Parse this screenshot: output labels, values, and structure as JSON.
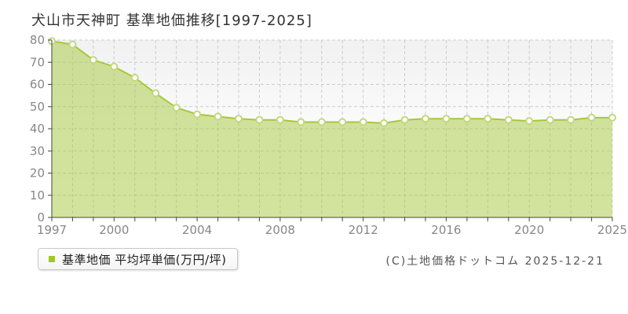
{
  "title": "犬山市天神町 基準地価推移[1997-2025]",
  "legend": {
    "label": "基準地価 平均坪単価(万円/坪)"
  },
  "copyright": "(C)土地価格ドットコム 2025-12-21",
  "colors": {
    "line": "#a6c83c",
    "fill": "rgba(166,200,60,0.5)",
    "marker_ring": "#c3d87e",
    "marker_fill": "#ffffff",
    "legend_square": "#a2c629",
    "grid": "#cccccc",
    "axis": "#444444",
    "tick_text": "#878787",
    "title_text": "#333333",
    "plot_bg_top": "#f1f1f1",
    "plot_bg_bottom": "#ffffff"
  },
  "chart_data": {
    "type": "area",
    "title": "犬山市天神町 基準地価推移[1997-2025]",
    "series_name": "基準地価 平均坪単価(万円/坪)",
    "xlabel": "",
    "ylabel": "平均坪単価(万円/坪)",
    "ylim": [
      0,
      80
    ],
    "grid": "dashed",
    "legend_position": "bottom-left",
    "years": [
      "1997",
      "1998",
      "1999",
      "2000",
      "2001",
      "2002",
      "2003",
      "2004",
      "2005",
      "2006",
      "2007",
      "2008",
      "2009",
      "2010",
      "2011",
      "2012",
      "2013",
      "2014",
      "2015",
      "2016",
      "2017",
      "2018",
      "2019",
      "2020",
      "2021",
      "2022",
      "2023",
      "2025"
    ],
    "values": [
      79.5,
      78,
      71,
      68,
      63,
      56,
      49.5,
      46.5,
      45.5,
      44.5,
      44,
      44,
      43,
      43,
      43,
      43,
      42.5,
      44,
      44.5,
      44.5,
      44.5,
      44.5,
      44,
      43.5,
      44,
      44,
      45,
      45
    ],
    "y_ticks": [
      0,
      10,
      20,
      30,
      40,
      50,
      60,
      70,
      80
    ],
    "x_ticks": [
      {
        "label": "1997",
        "index": 0
      },
      {
        "label": "2000",
        "index": 3
      },
      {
        "label": "2004",
        "index": 7
      },
      {
        "label": "2008",
        "index": 11
      },
      {
        "label": "2012",
        "index": 15
      },
      {
        "label": "2016",
        "index": 19
      },
      {
        "label": "2020",
        "index": 23
      },
      {
        "label": "2025",
        "index": 27
      }
    ]
  }
}
